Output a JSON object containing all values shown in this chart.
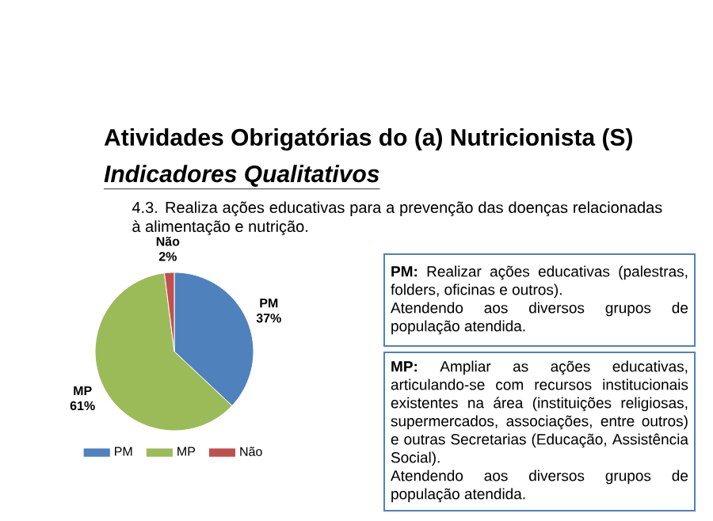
{
  "chart_data": {
    "type": "pie",
    "title": "Atividades Obrigatórias do (a) Nutricionista (S)",
    "subtitle": "Indicadores Qualitativos",
    "categories": [
      "PM",
      "MP",
      "Não"
    ],
    "values": [
      37,
      61,
      2
    ],
    "colors": [
      "#4f81bd",
      "#9bbb59",
      "#c0504d"
    ],
    "value_labels": [
      "37%",
      "61%",
      "2%"
    ],
    "legend": "bottom",
    "annotations": [
      "4.3. Realiza ações educativas para a prevenção das doenças relacionadas à alimentação e nutrição.",
      "**PM:** Realizar ações educativas (palestras, folders, oficinas e outros).",
      "Atendendo aos diversos grupos de população atendida.",
      "**MP:** Ampliar as ações educativas, articulando-se com recursos institucionais existentes na área (instituições religiosas, supermercados, associações, entre outros) e outras Secretarias (Educação, Assistência Social).",
      "Atendendo aos diversos grupos de população atendida."
    ]
  }
}
